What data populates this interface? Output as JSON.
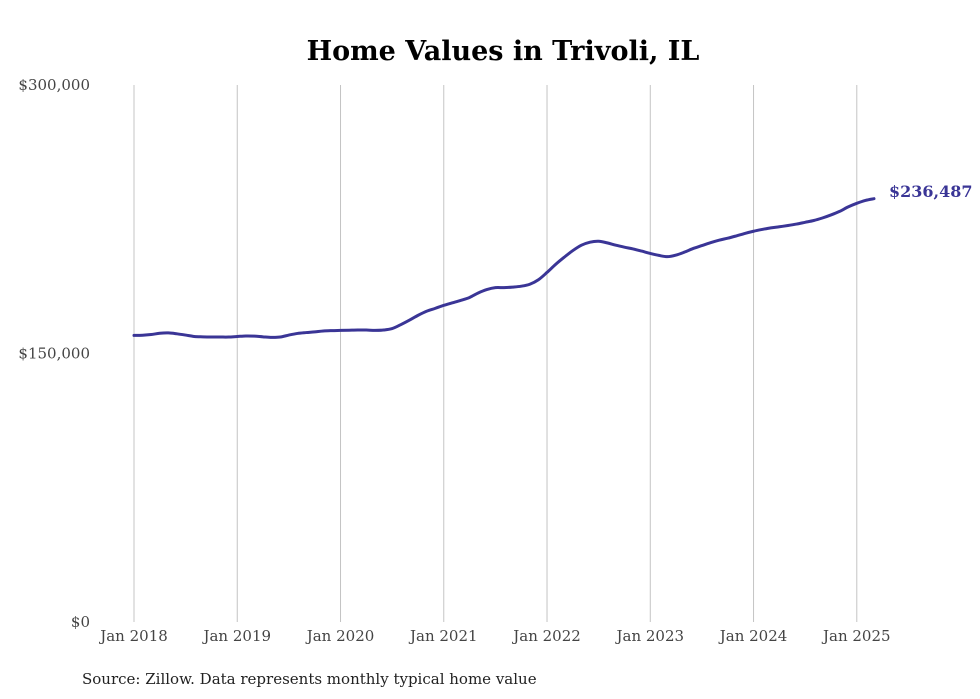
{
  "chart_data": {
    "type": "line",
    "title": "Home Values in Trivoli, IL",
    "xlabel": "",
    "ylabel": "",
    "ylim": [
      0,
      300000
    ],
    "y_ticks": [
      {
        "value": 0,
        "label": "$0"
      },
      {
        "value": 150000,
        "label": "$150,000"
      },
      {
        "value": 300000,
        "label": "$300,000"
      }
    ],
    "x_ticks": [
      {
        "value": "2018-01",
        "label": "Jan 2018"
      },
      {
        "value": "2019-01",
        "label": "Jan 2019"
      },
      {
        "value": "2020-01",
        "label": "Jan 2020"
      },
      {
        "value": "2021-01",
        "label": "Jan 2021"
      },
      {
        "value": "2022-01",
        "label": "Jan 2022"
      },
      {
        "value": "2023-01",
        "label": "Jan 2023"
      },
      {
        "value": "2024-01",
        "label": "Jan 2024"
      },
      {
        "value": "2025-01",
        "label": "Jan 2025"
      }
    ],
    "xlim": [
      "2018-01",
      "2025-03"
    ],
    "grid": {
      "vertical": true,
      "horizontal": false
    },
    "series": [
      {
        "color": "#3a3596",
        "x": [
          "2018-01",
          "2018-02",
          "2018-03",
          "2018-04",
          "2018-05",
          "2018-06",
          "2018-07",
          "2018-08",
          "2018-09",
          "2018-10",
          "2018-11",
          "2018-12",
          "2019-01",
          "2019-02",
          "2019-03",
          "2019-04",
          "2019-05",
          "2019-06",
          "2019-07",
          "2019-08",
          "2019-09",
          "2019-10",
          "2019-11",
          "2019-12",
          "2020-01",
          "2020-02",
          "2020-03",
          "2020-04",
          "2020-05",
          "2020-06",
          "2020-07",
          "2020-08",
          "2020-09",
          "2020-10",
          "2020-11",
          "2020-12",
          "2021-01",
          "2021-02",
          "2021-03",
          "2021-04",
          "2021-05",
          "2021-06",
          "2021-07",
          "2021-08",
          "2021-09",
          "2021-10",
          "2021-11",
          "2021-12",
          "2022-01",
          "2022-02",
          "2022-03",
          "2022-04",
          "2022-05",
          "2022-06",
          "2022-07",
          "2022-08",
          "2022-09",
          "2022-10",
          "2022-11",
          "2022-12",
          "2023-01",
          "2023-02",
          "2023-03",
          "2023-04",
          "2023-05",
          "2023-06",
          "2023-07",
          "2023-08",
          "2023-09",
          "2023-10",
          "2023-11",
          "2023-12",
          "2024-01",
          "2024-02",
          "2024-03",
          "2024-04",
          "2024-05",
          "2024-06",
          "2024-07",
          "2024-08",
          "2024-09",
          "2024-10",
          "2024-11",
          "2024-12",
          "2025-01",
          "2025-02",
          "2025-03"
        ],
        "values": [
          160100,
          160200,
          160600,
          161300,
          161500,
          161000,
          160300,
          159500,
          159300,
          159200,
          159200,
          159200,
          159500,
          159800,
          159700,
          159300,
          159000,
          159200,
          160300,
          161200,
          161700,
          162100,
          162600,
          162800,
          162900,
          163000,
          163100,
          163100,
          162900,
          163100,
          163900,
          166100,
          168600,
          171300,
          173600,
          175200,
          176900,
          178300,
          179700,
          181300,
          183800,
          185700,
          186800,
          186800,
          187100,
          187600,
          188700,
          191200,
          195300,
          199800,
          203800,
          207500,
          210500,
          212200,
          212700,
          211800,
          210500,
          209400,
          208400,
          207200,
          205900,
          204800,
          204100,
          205000,
          206700,
          208700,
          210300,
          211900,
          213300,
          214400,
          215700,
          217100,
          218300,
          219300,
          220200,
          220800,
          221500,
          222300,
          223300,
          224300,
          225700,
          227400,
          229400,
          231900,
          233900,
          235500,
          236487
        ]
      }
    ],
    "end_label": "$236,487"
  },
  "source_note": "Source: Zillow. Data represents monthly typical home value"
}
